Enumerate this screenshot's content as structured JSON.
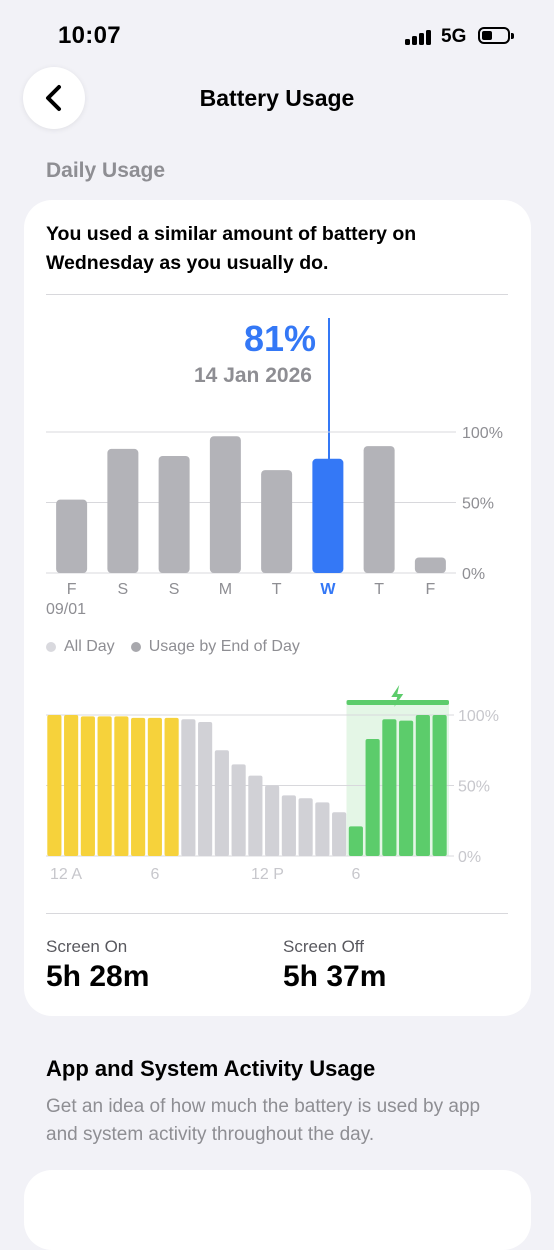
{
  "status_bar": {
    "time": "10:07",
    "network": "5G"
  },
  "nav": {
    "title": "Battery Usage"
  },
  "daily_usage": {
    "section_label": "Daily Usage",
    "insight": "You used a similar amount of battery on Wednesday as you usually do.",
    "selected": {
      "value": "81%",
      "date": "14 Jan 2026",
      "index": 5
    },
    "legend": [
      "All Day",
      "Usage by End of Day"
    ],
    "date_label": "09/01"
  },
  "colors": {
    "accent": "#3478f6",
    "bar_gray": "#b3b3b8",
    "bar_light": "#d1d1d6",
    "yellow": "#f6d23b",
    "green": "#5ccc6b",
    "green_zone": "#e4f6e6"
  },
  "chart_data": [
    {
      "type": "bar",
      "categories": [
        "F",
        "S",
        "S",
        "M",
        "T",
        "W",
        "T",
        "F"
      ],
      "values": [
        52,
        88,
        83,
        97,
        73,
        81,
        90,
        11
      ],
      "ylim": [
        0,
        100
      ],
      "ytick_labels": [
        "100%",
        "50%",
        "0%"
      ],
      "highlight_index": 5,
      "grid": true
    },
    {
      "type": "bar",
      "x_labels": [
        "12 A",
        "6",
        "12 P",
        "6"
      ],
      "values": [
        100,
        100,
        99,
        99,
        99,
        98,
        98,
        98,
        97,
        95,
        75,
        65,
        57,
        50,
        43,
        41,
        38,
        31,
        21,
        83,
        97,
        96,
        100,
        100
      ],
      "states": [
        "battery",
        "battery",
        "battery",
        "battery",
        "battery",
        "battery",
        "battery",
        "battery",
        "idle",
        "idle",
        "idle",
        "idle",
        "idle",
        "idle",
        "idle",
        "idle",
        "idle",
        "idle",
        "charging",
        "charging",
        "charging",
        "charging",
        "charging",
        "charging"
      ],
      "ylim": [
        0,
        100
      ],
      "ytick_labels": [
        "100%",
        "50%",
        "0%"
      ],
      "charging_icon": "bolt-icon",
      "grid": true
    }
  ],
  "screen_time": {
    "on_label": "Screen On",
    "on_value": "5h 28m",
    "off_label": "Screen Off",
    "off_value": "5h 37m"
  },
  "activity": {
    "title": "App and System Activity Usage",
    "description": "Get an idea of how much the battery is used by app and system activity throughout the day."
  }
}
